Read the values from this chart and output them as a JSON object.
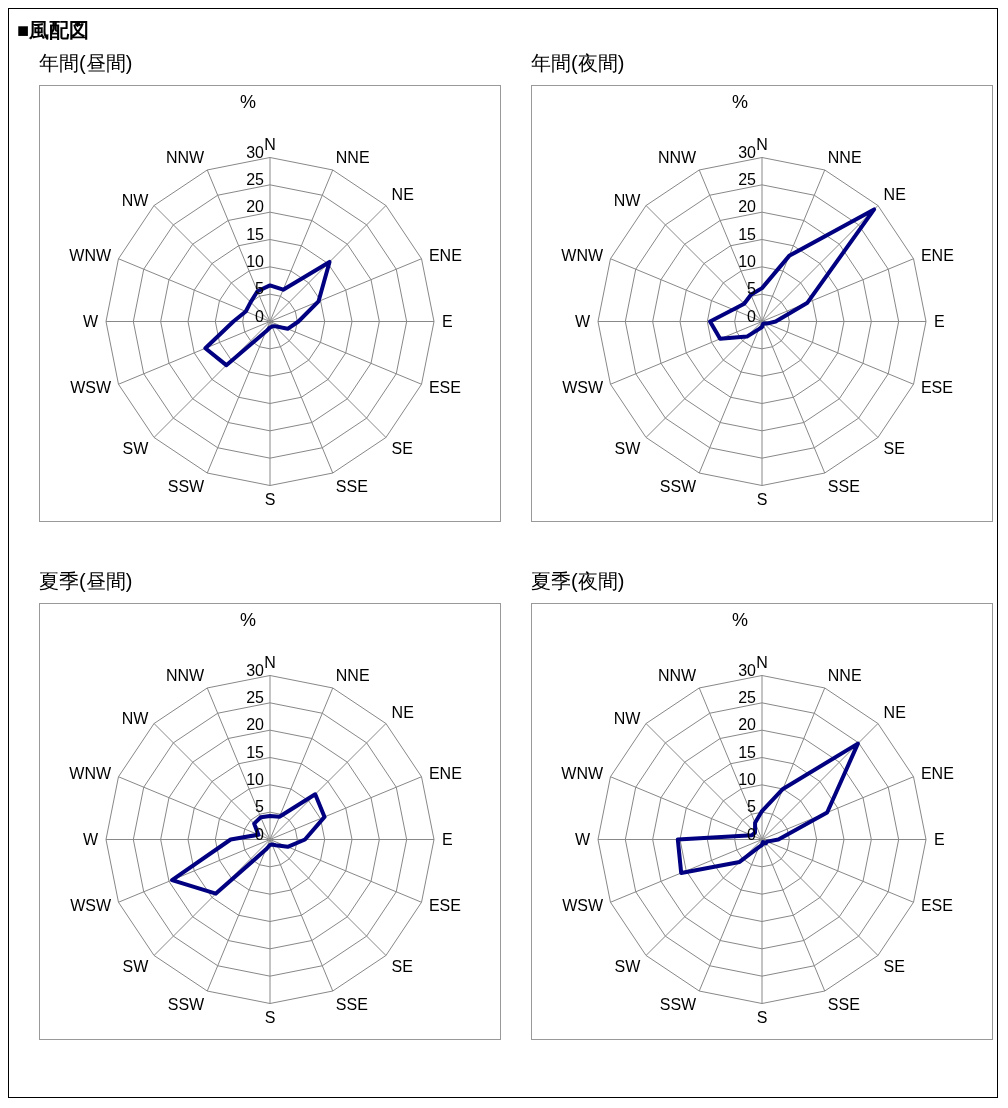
{
  "chart_data": [
    {
      "type": "radar",
      "title": "年間(昼間)",
      "annotations": [
        "■風配図"
      ],
      "ylabel": "%",
      "categories": [
        "N",
        "NNE",
        "NE",
        "ENE",
        "E",
        "ESE",
        "SE",
        "SSE",
        "S",
        "SSW",
        "SW",
        "WSW",
        "W",
        "WNW",
        "NW",
        "NNW"
      ],
      "ylim": [
        0,
        30
      ],
      "yticks": [
        0,
        5,
        10,
        15,
        20,
        25,
        30
      ],
      "grid": true,
      "legend": false,
      "marker": "none",
      "line_style": "solid",
      "series": [
        {
          "color": "#000080",
          "values": [
            6.6,
            6.3,
            15.4,
            9.6,
            5.2,
            3.5,
            1.2,
            1,
            1.1,
            2,
            11.3,
            12.8,
            6.7,
            4.8,
            5,
            6
          ]
        }
      ]
    },
    {
      "type": "radar",
      "title": "年間(夜間)",
      "ylabel": "%",
      "categories": [
        "N",
        "NNE",
        "NE",
        "ENE",
        "E",
        "ESE",
        "SE",
        "SSE",
        "S",
        "SSW",
        "SW",
        "WSW",
        "W",
        "WNW",
        "NW",
        "NNW"
      ],
      "ylim": [
        0,
        30
      ],
      "yticks": [
        0,
        5,
        10,
        15,
        20,
        25,
        30
      ],
      "grid": true,
      "legend": false,
      "marker": "none",
      "line_style": "solid",
      "series": [
        {
          "color": "#000080",
          "values": [
            6.1,
            13,
            29,
            9,
            2.5,
            1,
            0.5,
            0.5,
            1,
            1.5,
            3.9,
            8.3,
            9.5,
            5.7,
            4.6,
            5.3
          ]
        }
      ]
    },
    {
      "type": "radar",
      "title": "夏季(昼間)",
      "ylabel": "%",
      "categories": [
        "N",
        "NNE",
        "NE",
        "ENE",
        "E",
        "ESE",
        "SE",
        "SSE",
        "S",
        "SSW",
        "SW",
        "WSW",
        "W",
        "WNW",
        "NW",
        "NNW"
      ],
      "ylim": [
        0,
        30
      ],
      "yticks": [
        0,
        5,
        10,
        15,
        20,
        25,
        30
      ],
      "grid": true,
      "legend": false,
      "marker": "none",
      "line_style": "solid",
      "series": [
        {
          "color": "#000080",
          "values": [
            4.3,
            4.5,
            11.7,
            10.8,
            6.4,
            3.5,
            1.5,
            1,
            1,
            2,
            14,
            19.4,
            7.2,
            2.3,
            4.1,
            4.4
          ]
        }
      ]
    },
    {
      "type": "radar",
      "title": "夏季(夜間)",
      "ylabel": "%",
      "categories": [
        "N",
        "NNE",
        "NE",
        "ENE",
        "E",
        "ESE",
        "SE",
        "SSE",
        "S",
        "SSW",
        "SW",
        "WSW",
        "W",
        "WNW",
        "NW",
        "NNW"
      ],
      "ylim": [
        0,
        30
      ],
      "yticks": [
        0,
        5,
        10,
        15,
        20,
        25,
        30
      ],
      "grid": true,
      "legend": false,
      "marker": "none",
      "line_style": "solid",
      "series": [
        {
          "color": "#000080",
          "values": [
            5.2,
            10,
            24.8,
            12.9,
            3,
            1,
            1,
            0.5,
            1,
            1.5,
            5.8,
            16,
            15.4,
            2,
            1.8,
            3.3
          ]
        }
      ]
    }
  ]
}
